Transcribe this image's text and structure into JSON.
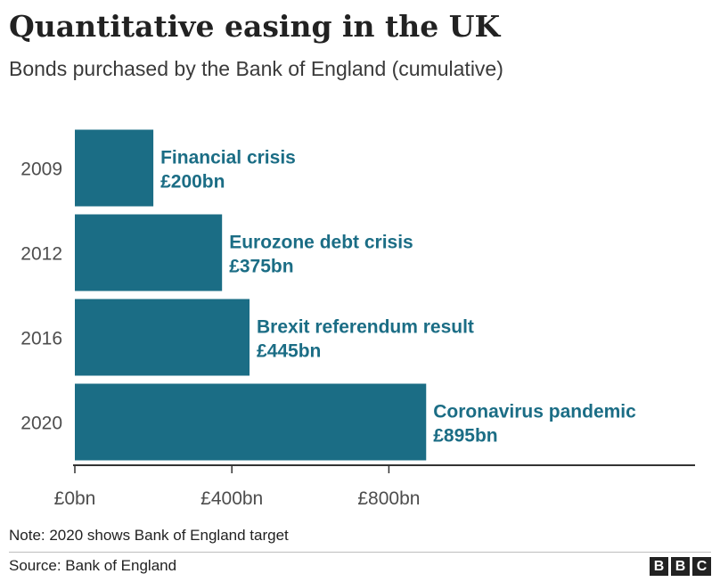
{
  "title": "Quantitative easing in the UK",
  "subtitle": "Bonds purchased by the Bank of England (cumulative)",
  "note": "Note: 2020 shows Bank of England target",
  "source": "Source: Bank of England",
  "logo": [
    "B",
    "B",
    "C"
  ],
  "colors": {
    "bar": "#1b6d85",
    "label": "#1b6d85",
    "axis": "#333333",
    "text": "#4d4d4d"
  },
  "chart_data": {
    "type": "bar",
    "orientation": "horizontal",
    "categories": [
      "2009",
      "2012",
      "2016",
      "2020"
    ],
    "values": [
      200,
      375,
      445,
      895
    ],
    "annotations": [
      {
        "event": "Financial crisis",
        "amount": "£200bn"
      },
      {
        "event": "Eurozone debt crisis",
        "amount": "£375bn"
      },
      {
        "event": "Brexit referendum result",
        "amount": "£445bn"
      },
      {
        "event": "Coronavirus pandemic",
        "amount": "£895bn"
      }
    ],
    "ticks": [
      0,
      400,
      800
    ],
    "tick_labels": [
      "£0bn",
      "£400bn",
      "£800bn"
    ],
    "xlim": [
      0,
      1580
    ],
    "grid": false
  }
}
